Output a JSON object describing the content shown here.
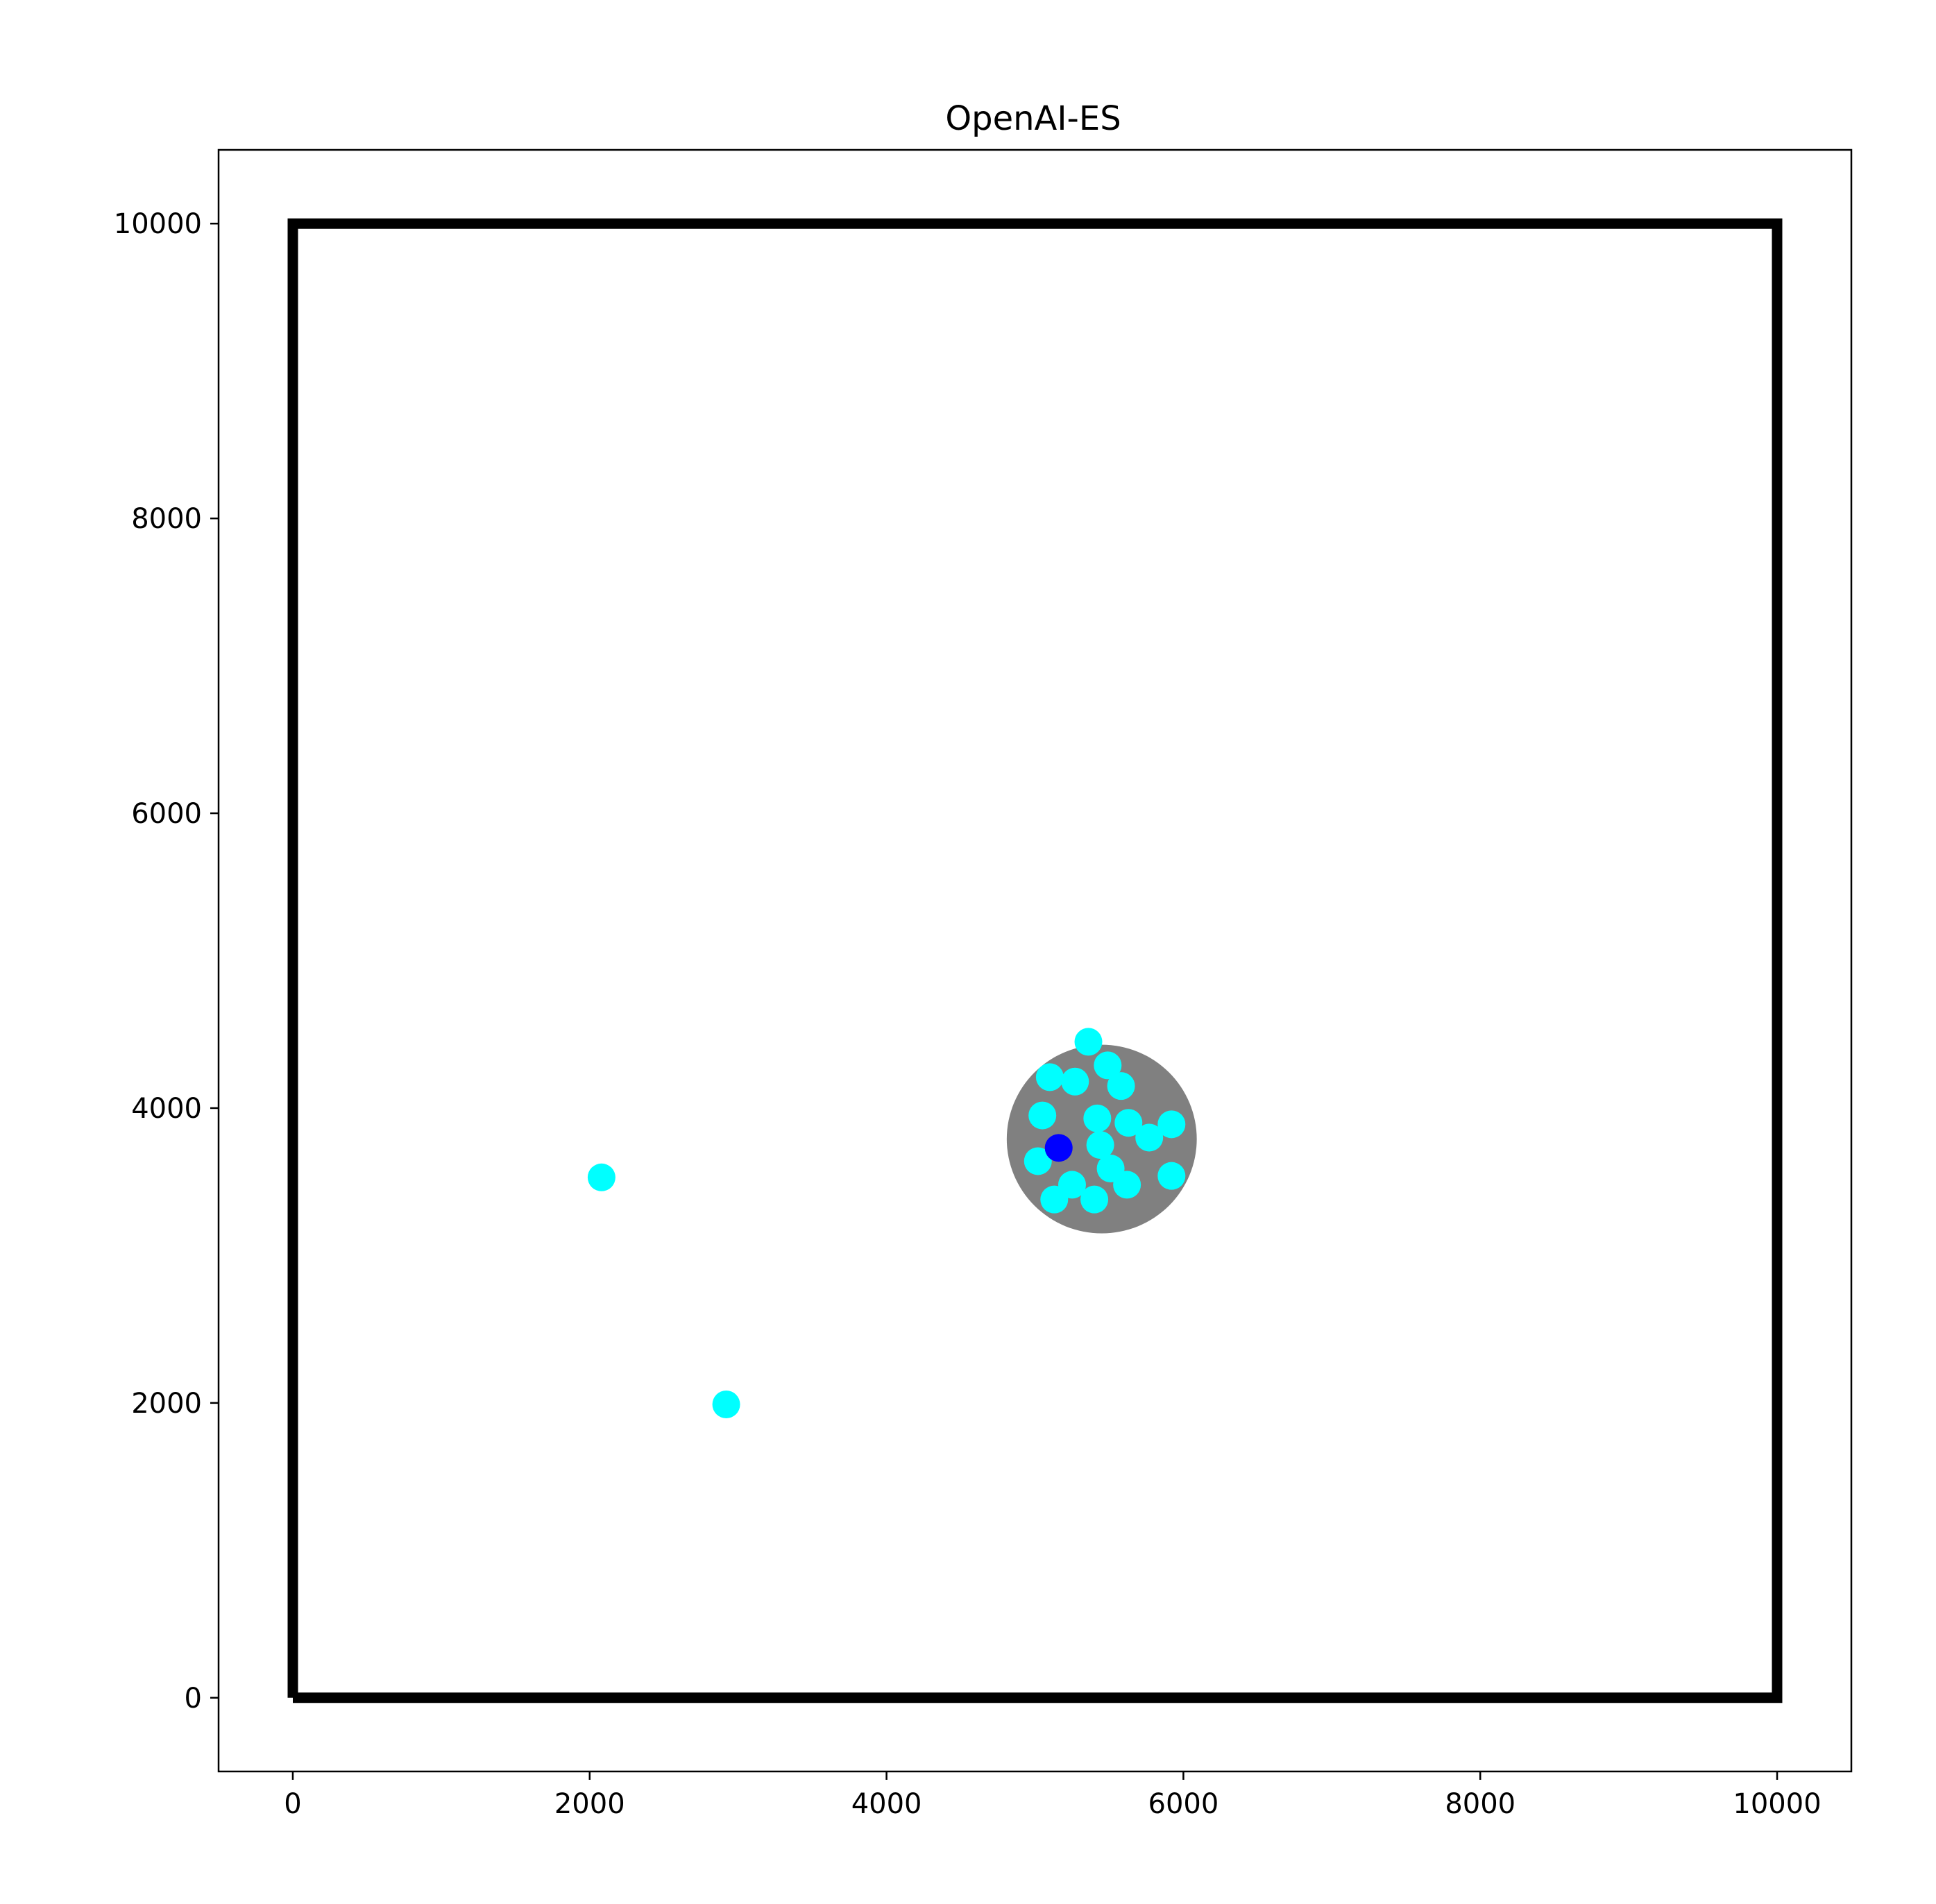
{
  "chart_data": {
    "type": "scatter",
    "title": "OpenAI-ES",
    "xlabel": "",
    "ylabel": "",
    "xlim": [
      -500,
      10500
    ],
    "ylim": [
      -500,
      10500
    ],
    "x_ticks": [
      0,
      2000,
      4000,
      6000,
      8000,
      10000
    ],
    "y_ticks": [
      0,
      2000,
      4000,
      6000,
      8000,
      10000
    ],
    "x_tick_labels": [
      "0",
      "2000",
      "4000",
      "6000",
      "8000",
      "10000"
    ],
    "y_tick_labels": [
      "0",
      "2000",
      "4000",
      "6000",
      "8000",
      "10000"
    ],
    "grid": false,
    "boundary": {
      "x": [
        0,
        10000,
        10000,
        0,
        0
      ],
      "y": [
        0,
        0,
        10000,
        10000,
        0
      ],
      "color": "#000000"
    },
    "target_region": {
      "center": [
        5450,
        3790
      ],
      "radius": 640,
      "color": "#808080"
    },
    "series": [
      {
        "color": "#00ffff",
        "points": [
          [
            5360,
            4450
          ],
          [
            5490,
            4290
          ],
          [
            5580,
            4150
          ],
          [
            5100,
            4210
          ],
          [
            5270,
            4180
          ],
          [
            5050,
            3950
          ],
          [
            5420,
            3930
          ],
          [
            5630,
            3900
          ],
          [
            5920,
            3890
          ],
          [
            5770,
            3800
          ],
          [
            5440,
            3750
          ],
          [
            5020,
            3640
          ],
          [
            5510,
            3590
          ],
          [
            5920,
            3540
          ],
          [
            5250,
            3480
          ],
          [
            5620,
            3480
          ],
          [
            5130,
            3380
          ],
          [
            5400,
            3380
          ],
          [
            2080,
            3530
          ],
          [
            2920,
            1990
          ]
        ]
      },
      {
        "color": "#0000ff",
        "points": [
          [
            5160,
            3730
          ]
        ]
      }
    ]
  }
}
